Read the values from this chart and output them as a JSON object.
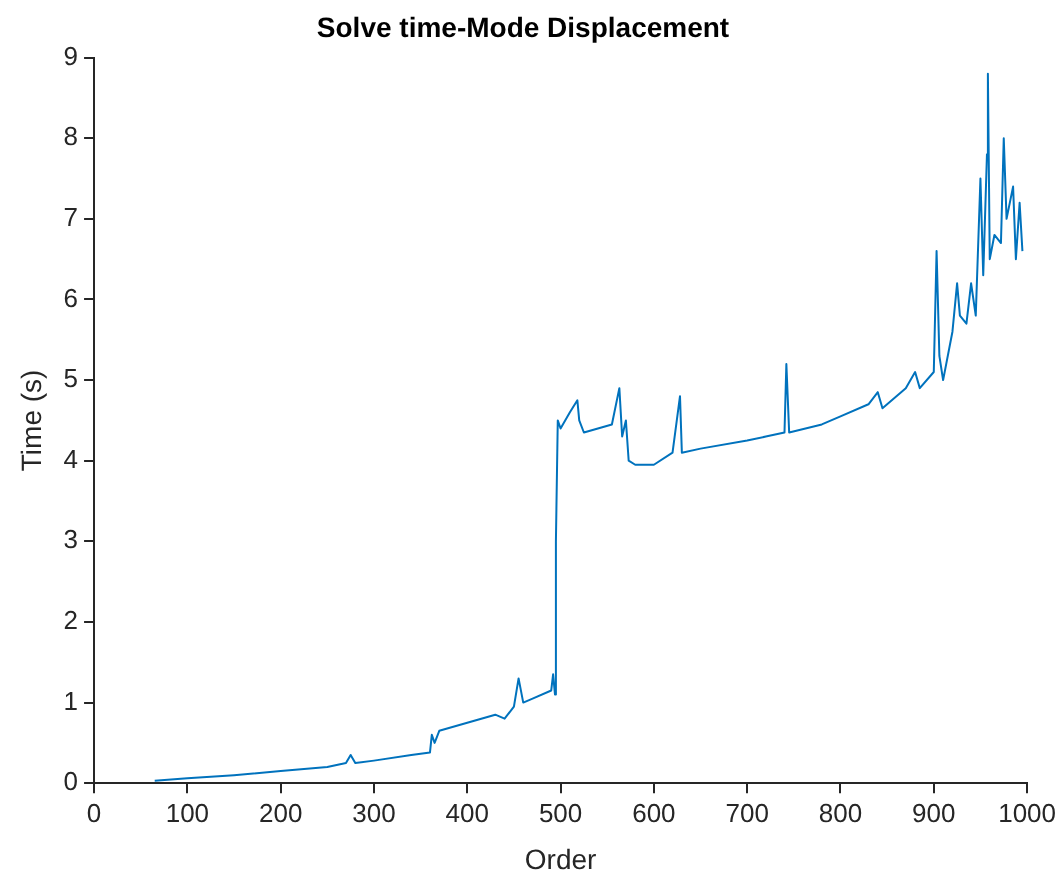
{
  "chart_data": {
    "type": "line",
    "title": "Solve time-Mode Displacement",
    "xlabel": "Order",
    "ylabel": "Time (s)",
    "x": [
      65,
      100,
      150,
      200,
      250,
      270,
      275,
      280,
      300,
      340,
      360,
      362,
      365,
      370,
      400,
      430,
      440,
      450,
      455,
      460,
      470,
      490,
      492,
      494,
      495,
      497,
      500,
      510,
      518,
      520,
      525,
      540,
      555,
      563,
      566,
      570,
      573,
      580,
      600,
      620,
      628,
      630,
      650,
      700,
      720,
      740,
      742,
      745,
      780,
      800,
      830,
      840,
      845,
      870,
      880,
      885,
      900,
      903,
      906,
      910,
      920,
      925,
      928,
      935,
      940,
      945,
      950,
      953,
      957,
      958,
      960,
      965,
      972,
      975,
      978,
      985,
      988,
      992,
      995
    ],
    "series": [
      {
        "color": "#0072bd",
        "values": [
          0.03,
          0.06,
          0.1,
          0.15,
          0.2,
          0.25,
          0.35,
          0.25,
          0.28,
          0.35,
          0.38,
          0.6,
          0.5,
          0.65,
          0.75,
          0.85,
          0.8,
          0.95,
          1.3,
          1.0,
          1.05,
          1.15,
          1.35,
          1.1,
          3.0,
          4.5,
          4.4,
          4.6,
          4.75,
          4.5,
          4.35,
          4.4,
          4.45,
          4.9,
          4.3,
          4.5,
          4.0,
          3.95,
          3.95,
          4.1,
          4.8,
          4.1,
          4.15,
          4.25,
          4.3,
          4.35,
          5.2,
          4.35,
          4.45,
          4.55,
          4.7,
          4.85,
          4.65,
          4.9,
          5.1,
          4.9,
          5.1,
          6.6,
          5.3,
          5.0,
          5.6,
          6.2,
          5.8,
          5.7,
          6.2,
          5.8,
          7.5,
          6.3,
          7.8,
          8.8,
          6.5,
          6.8,
          6.7,
          8.0,
          7.0,
          7.4,
          6.5,
          7.2,
          6.6
        ]
      }
    ],
    "xlim": [
      0,
      1000
    ],
    "xticks": [
      0,
      100,
      200,
      300,
      400,
      500,
      600,
      700,
      800,
      900,
      1000
    ],
    "ylim": [
      0,
      9
    ],
    "yticks": [
      0,
      1,
      2,
      3,
      4,
      5,
      6,
      7,
      8,
      9
    ],
    "grid": false,
    "legend": false,
    "marker": "none",
    "line_style": "solid"
  }
}
